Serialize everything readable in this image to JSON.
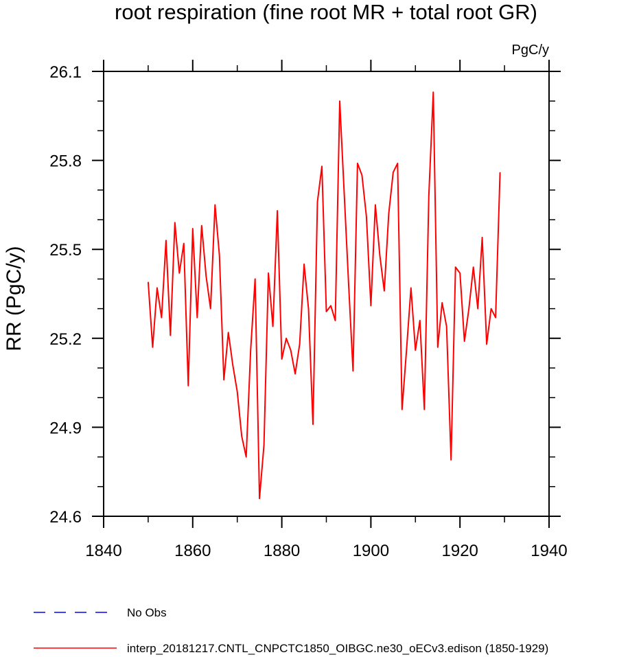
{
  "chart_data": {
    "type": "line",
    "title": "root respiration (fine root MR + total root GR)",
    "units_label": "PgC/y",
    "ylabel": "RR  (PgC/y)",
    "xlabel": "",
    "xlim": [
      1840,
      1940
    ],
    "ylim": [
      24.6,
      26.1
    ],
    "x_ticks": [
      1840,
      1860,
      1880,
      1900,
      1920,
      1940
    ],
    "y_ticks": [
      24.6,
      24.9,
      25.2,
      25.5,
      25.8,
      26.1
    ],
    "y_tick_labels": [
      "24.6",
      "24.9",
      "25.2",
      "25.5",
      "25.8",
      "26.1"
    ],
    "x_minor_step": 10,
    "y_minor_step": 0.1,
    "grid": false,
    "series": [
      {
        "name": "interp_20181217.CNTL_CNPCTC1850_OIBGC.ne30_oECv3.edison (1850-1929)",
        "color": "#ff0000",
        "style": "solid",
        "x_start": 1850,
        "x_step": 1,
        "values": [
          25.39,
          25.17,
          25.37,
          25.27,
          25.53,
          25.21,
          25.59,
          25.42,
          25.52,
          25.04,
          25.57,
          25.27,
          25.58,
          25.41,
          25.3,
          25.65,
          25.48,
          25.06,
          25.22,
          25.11,
          25.02,
          24.87,
          24.8,
          25.16,
          25.4,
          24.66,
          24.84,
          25.42,
          25.24,
          25.63,
          25.13,
          25.2,
          25.16,
          25.08,
          25.18,
          25.45,
          25.3,
          24.91,
          25.66,
          25.78,
          25.29,
          25.31,
          25.26,
          26.0,
          25.69,
          25.38,
          25.09,
          25.79,
          25.75,
          25.61,
          25.31,
          25.65,
          25.48,
          25.36,
          25.62,
          25.76,
          25.79,
          24.96,
          25.16,
          25.37,
          25.16,
          25.26,
          24.96,
          25.68,
          26.03,
          25.17,
          25.32,
          25.24,
          24.79,
          25.44,
          25.42,
          25.19,
          25.3,
          25.44,
          25.3,
          25.54,
          25.18,
          25.3,
          25.27,
          25.76
        ]
      }
    ],
    "legend": [
      {
        "label": "No Obs",
        "color": "#0000ff",
        "style": "dashed"
      },
      {
        "label": "interp_20181217.CNTL_CNPCTC1850_OIBGC.ne30_oECv3.edison (1850-1929)",
        "color": "#ff0000",
        "style": "solid"
      }
    ],
    "legend_position": "bottom-left"
  }
}
